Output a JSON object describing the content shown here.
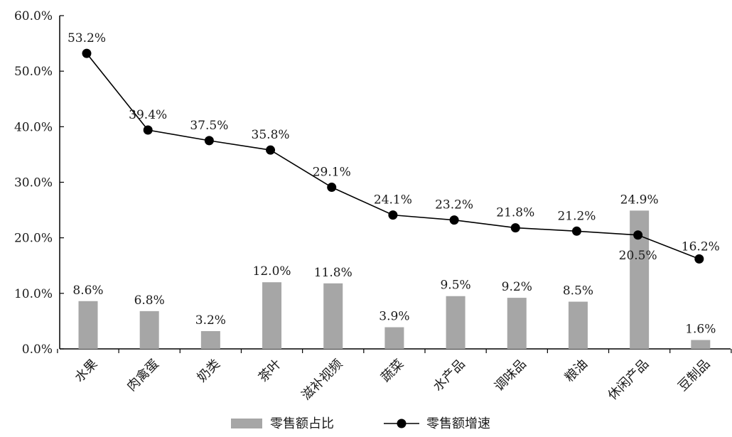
{
  "chart_data": {
    "type": "bar",
    "categories": [
      "水果",
      "肉禽蛋",
      "奶类",
      "茶叶",
      "滋补视频",
      "蔬菜",
      "水产品",
      "调味品",
      "粮油",
      "休闲产品",
      "豆制品"
    ],
    "series": [
      {
        "name": "零售额占比",
        "type": "bar",
        "values": [
          8.6,
          6.8,
          3.2,
          12.0,
          11.8,
          3.9,
          9.5,
          9.2,
          8.5,
          24.9,
          1.6
        ],
        "labels": [
          "8.6%",
          "6.8%",
          "3.2%",
          "12.0%",
          "11.8%",
          "3.9%",
          "9.5%",
          "9.2%",
          "8.5%",
          "24.9%",
          "1.6%"
        ],
        "color": "#a6a6a6"
      },
      {
        "name": "零售额增速",
        "type": "line",
        "values": [
          53.2,
          39.4,
          37.5,
          35.8,
          29.1,
          24.1,
          23.2,
          21.8,
          21.2,
          20.5,
          16.2
        ],
        "labels": [
          "53.2%",
          "39.4%",
          "37.5%",
          "35.8%",
          "29.1%",
          "24.1%",
          "23.2%",
          "21.8%",
          "21.2%",
          "20.5%",
          "16.2%"
        ],
        "color": "#000000"
      }
    ],
    "ylim": [
      0,
      60
    ],
    "yticks": [
      "0.0%",
      "10.0%",
      "20.0%",
      "30.0%",
      "40.0%",
      "50.0%",
      "60.0%"
    ],
    "grid": false,
    "legend_position": "bottom-center"
  }
}
